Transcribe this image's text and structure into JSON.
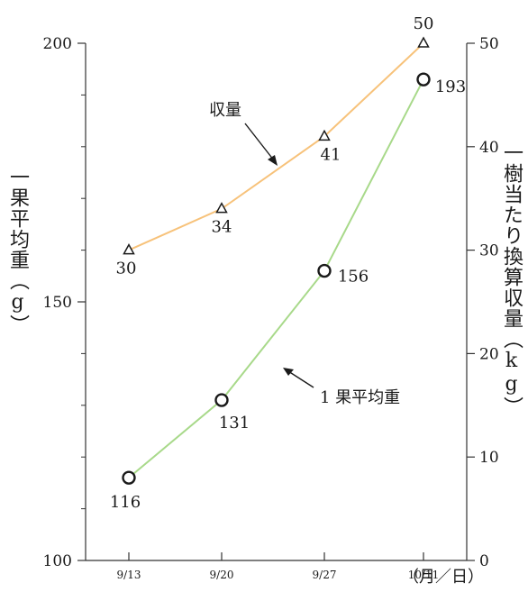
{
  "chart_data": {
    "type": "line",
    "x_categories": [
      "9/13",
      "9/20",
      "9/27",
      "10/11"
    ],
    "x_unit_label": "（月／日）",
    "left_axis": {
      "label": "一果平均重（g）",
      "ticks": [
        "100",
        "150",
        "200"
      ],
      "range": [
        100,
        200
      ]
    },
    "right_axis": {
      "label": "一樹当たり換算収量（kg）",
      "ticks": [
        "0",
        "10",
        "20",
        "30",
        "40",
        "50"
      ],
      "range": [
        0,
        50
      ]
    },
    "series": [
      {
        "name": "収量",
        "axis": "right",
        "color": "#f7c27a",
        "marker": "triangle",
        "values": [
          30,
          34,
          41,
          50
        ],
        "labels": [
          "30",
          "34",
          "41",
          "50"
        ]
      },
      {
        "name": "1 果平均重",
        "axis": "left",
        "color": "#a8d98a",
        "marker": "circle",
        "values": [
          116,
          131,
          156,
          193
        ],
        "labels": [
          "116",
          "131",
          "156",
          "193"
        ]
      }
    ]
  }
}
